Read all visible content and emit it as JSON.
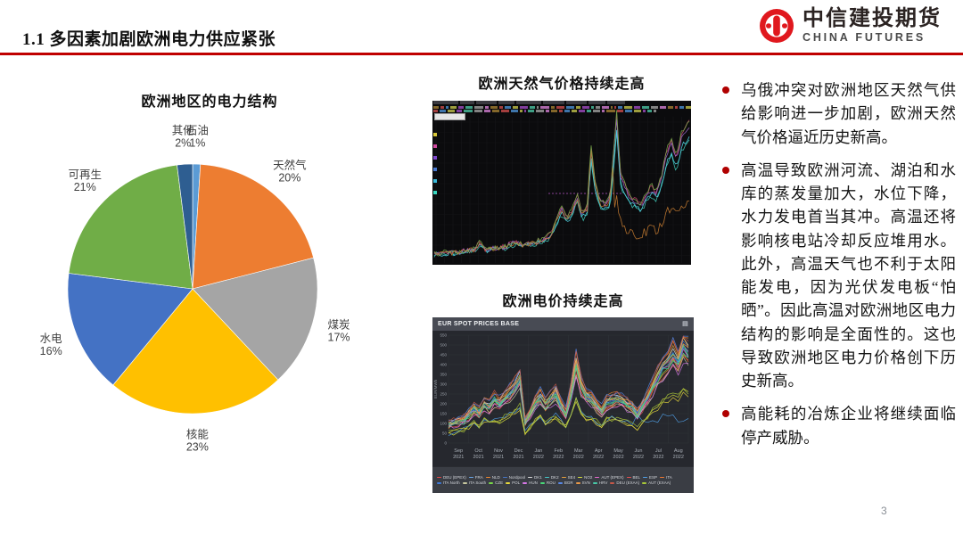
{
  "slide": {
    "title": "1.1 多因素加剧欧洲电力供应紧张",
    "page_number": "3",
    "accent_red": "#c00000",
    "bullet_red": "#b00000"
  },
  "logo": {
    "name_cn": "中信建投期货",
    "name_en": "CHINA FUTURES",
    "brand_red": "#e0181e"
  },
  "bullets": [
    "乌俄冲突对欧洲地区天然气供给影响进一步加剧，欧洲天然气价格逼近历史新高。",
    "高温导致欧洲河流、湖泊和水库的蒸发量加大，水位下降，水力发电首当其冲。高温还将影响核电站冷却反应堆用水。此外，高温天气也不利于太阳能发电，因为光伏发电板“怕晒”。因此高温对欧洲地区电力结构的影响是全面性的。这也导致欧洲地区电力价格创下历史新高。",
    "高能耗的冶炼企业将继续面临停产威胁。"
  ],
  "chart_data": [
    {
      "id": "europe-electricity-mix",
      "type": "pie",
      "title": "欧洲地区的电力结构",
      "categories": [
        "石油",
        "天然气",
        "煤炭",
        "核能",
        "水电",
        "可再生",
        "其他"
      ],
      "values": [
        1,
        20,
        17,
        23,
        16,
        21,
        2
      ],
      "colors": [
        "#5B9BD5",
        "#ED7D31",
        "#A5A5A5",
        "#FFC000",
        "#4472C4",
        "#70AD47",
        "#2E5E91"
      ],
      "layout": "starts at 12 o'clock, clockwise; labels outside with name above percent",
      "label_color": "#404040"
    },
    {
      "id": "europe-gas-price",
      "type": "line",
      "title": "欧洲天然气价格持续走高",
      "style": "dark trading-terminal screenshot; micro ticker text at top is illegible",
      "trend": "flat low levels on the left, gradual climb, repeated sharp spikes, surging to record highs at the right edge; one orange series dips sharply near the right before recovering",
      "line_colors": [
        "#3fc4b4",
        "#4fd2e2",
        "#c2426e",
        "#9a66c8",
        "#c07830",
        "#7aa84b"
      ],
      "left_swatches": [
        "#d8c838",
        "#d048a0",
        "#8048d0",
        "#4878d0",
        "#38b8d8",
        "#38d8c0"
      ],
      "background": "#0b0b0d"
    },
    {
      "id": "eur-spot-prices",
      "type": "line",
      "title": "欧洲电价持续走高",
      "panel_title": "EUR SPOT PRICES BASE",
      "ylabel": "EUR/MWh",
      "ylim": [
        0,
        550
      ],
      "ytick_step": 50,
      "months": [
        "Sep",
        "Oct",
        "Nov",
        "Dec",
        "Jan",
        "Feb",
        "Mar",
        "Apr",
        "May",
        "Jun",
        "Jul",
        "Aug"
      ],
      "years": [
        "2021",
        "2021",
        "2021",
        "2021",
        "2022",
        "2022",
        "2022",
        "2022",
        "2022",
        "2022",
        "2022",
        "2022"
      ],
      "base_series": [
        95,
        105,
        115,
        120,
        150,
        185,
        160,
        210,
        190,
        230,
        210,
        240,
        260,
        300,
        345,
        110,
        160,
        210,
        250,
        200,
        230,
        260,
        200,
        155,
        270,
        425,
        300,
        250,
        235,
        200,
        175,
        215,
        225,
        235,
        225,
        205,
        185,
        150,
        195,
        240,
        300,
        350,
        400,
        430,
        470,
        430,
        510,
        480
      ],
      "grid": true,
      "legend_position": "bottom",
      "legend": [
        {
          "label": "DEU (EPEX)",
          "color": "#e84545"
        },
        {
          "label": "FRA",
          "color": "#6aa6e8"
        },
        {
          "label": "NLD",
          "color": "#f0862d"
        },
        {
          "label": "Nordpool",
          "color": "#4676c8"
        },
        {
          "label": "DK1",
          "color": "#dcdcdc"
        },
        {
          "label": "DK2",
          "color": "#45c8c8"
        },
        {
          "label": "SE4",
          "color": "#e8a03c"
        },
        {
          "label": "NO2",
          "color": "#d8e23c"
        },
        {
          "label": "AUT (EPEX)",
          "color": "#e86ad0"
        },
        {
          "label": "BEL",
          "color": "#e85050"
        },
        {
          "label": "ESP",
          "color": "#50a0e8"
        },
        {
          "label": "ITA",
          "color": "#f07830"
        },
        {
          "label": "ITA North",
          "color": "#3c78d8"
        },
        {
          "label": "ITA South",
          "color": "#c8c8a0"
        },
        {
          "label": "CZE",
          "color": "#78d848"
        },
        {
          "label": "POL",
          "color": "#e8d83c"
        },
        {
          "label": "HUN",
          "color": "#d878e8"
        },
        {
          "label": "ROU",
          "color": "#48d878"
        },
        {
          "label": "BGR",
          "color": "#5888e8"
        },
        {
          "label": "SVN",
          "color": "#e89848"
        },
        {
          "label": "HRV",
          "color": "#48c8a8"
        },
        {
          "label": "DEU (EXAA)",
          "color": "#c85848"
        },
        {
          "label": "AUT (EXAA)",
          "color": "#a8c838"
        }
      ]
    }
  ]
}
